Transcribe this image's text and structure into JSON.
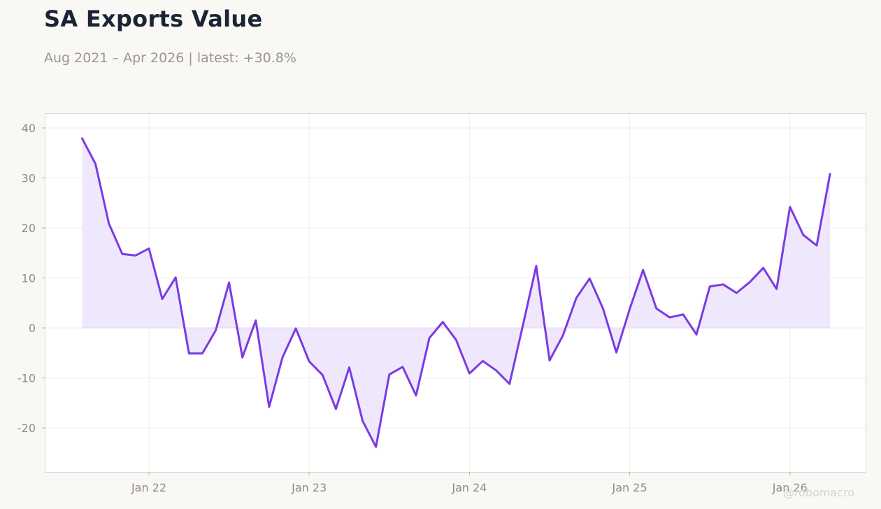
{
  "header": {
    "title": "SA Exports Value",
    "subtitle": "Aug 2021 – Apr 2026 | latest: +30.8%"
  },
  "watermark": "@robomacro",
  "colors": {
    "line": "#7b3be3",
    "fill": "#efe8fc",
    "background": "#f9f8f5",
    "plot_background": "#ffffff",
    "grid": "#efeeeb",
    "axis": "#d9d7d2"
  },
  "chart_data": {
    "type": "area",
    "title": "SA Exports Value",
    "subtitle": "Aug 2021 – Apr 2026 | latest: +30.8%",
    "xlabel": "",
    "ylabel": "",
    "x": [
      "2021-08",
      "2021-09",
      "2021-10",
      "2021-11",
      "2021-12",
      "2022-01",
      "2022-02",
      "2022-03",
      "2022-04",
      "2022-05",
      "2022-06",
      "2022-07",
      "2022-08",
      "2022-09",
      "2022-10",
      "2022-11",
      "2022-12",
      "2023-01",
      "2023-02",
      "2023-03",
      "2023-04",
      "2023-05",
      "2023-06",
      "2023-07",
      "2023-08",
      "2023-09",
      "2023-10",
      "2023-11",
      "2023-12",
      "2024-01",
      "2024-02",
      "2024-03",
      "2024-04",
      "2024-05",
      "2024-06",
      "2024-07",
      "2024-08",
      "2024-09",
      "2024-10",
      "2024-11",
      "2024-12",
      "2025-01",
      "2025-02",
      "2025-03",
      "2025-04",
      "2025-05",
      "2025-06",
      "2025-07",
      "2025-08",
      "2025-09",
      "2025-10",
      "2025-11",
      "2025-12",
      "2026-01",
      "2026-02",
      "2026-03",
      "2026-04"
    ],
    "values": [
      37.9,
      32.8,
      20.9,
      14.8,
      14.5,
      15.9,
      5.8,
      10.1,
      -5.1,
      -5.1,
      -0.5,
      9.1,
      -5.9,
      1.5,
      -15.8,
      -5.9,
      -0.1,
      -6.7,
      -9.4,
      -16.2,
      -7.9,
      -18.6,
      -23.8,
      -9.3,
      -7.8,
      -13.5,
      -2.0,
      1.2,
      -2.4,
      -9.1,
      -6.6,
      -8.5,
      -11.2,
      0.5,
      12.4,
      -6.5,
      -1.5,
      6.0,
      9.9,
      3.9,
      -4.9,
      3.8,
      11.6,
      3.9,
      2.1,
      2.7,
      -1.3,
      8.3,
      8.7,
      7.0,
      9.2,
      12.0,
      7.8,
      24.2,
      18.6,
      16.5,
      30.8
    ],
    "x_ticks": [
      "Jan 22",
      "Jan 23",
      "Jan 24",
      "Jan 25",
      "Jan 26"
    ],
    "y_ticks": [
      -20,
      -10,
      0,
      10,
      20,
      30,
      40
    ],
    "ylim": [
      -28.8,
      42.8
    ],
    "grid": true,
    "legend": "none",
    "fill_baseline": 0
  }
}
